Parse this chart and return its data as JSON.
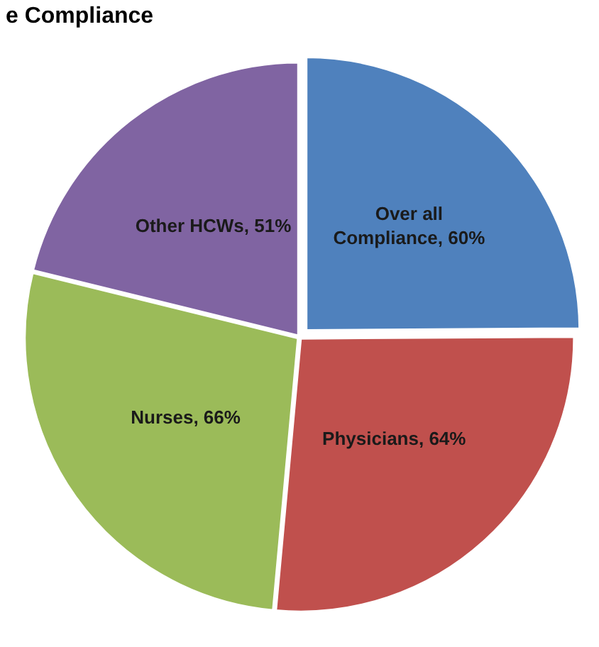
{
  "chart_data": {
    "type": "pie",
    "title": "e Compliance",
    "categories": [
      "Over all Compliance",
      "Physicians",
      "Nurses",
      "Other HCWs"
    ],
    "values": [
      60,
      64,
      66,
      51
    ],
    "colors": [
      "#4f81bd",
      "#c0504d",
      "#9bbb59",
      "#8064a2"
    ],
    "value_labels": [
      ", 60%",
      ", 64%",
      ", 66%",
      ", 51%"
    ],
    "legend": false
  }
}
